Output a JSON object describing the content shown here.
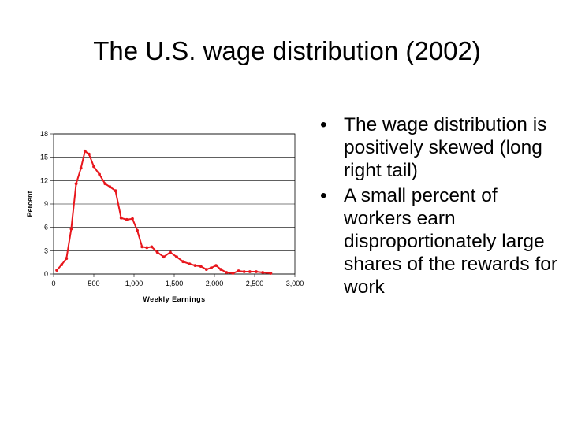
{
  "slide": {
    "title": "The U.S. wage distribution (2002)",
    "bullets": [
      "The wage distribution is positively skewed (long right tail)",
      "A small percent of workers earn disproportionately large shares of the rewards for work"
    ]
  },
  "chart_data": {
    "type": "line",
    "title": "",
    "xlabel": "Weekly Earnings",
    "ylabel": "Percent",
    "xlim": [
      0,
      3000
    ],
    "ylim": [
      0,
      18
    ],
    "xticks": [
      0,
      500,
      1000,
      1500,
      2000,
      2500,
      3000
    ],
    "xtick_labels": [
      "0",
      "500",
      "1,000",
      "1,500",
      "2,000",
      "2,500",
      "3,000"
    ],
    "yticks": [
      0,
      3,
      6,
      9,
      12,
      15,
      18
    ],
    "ytick_labels": [
      "0",
      "3",
      "6",
      "9",
      "12",
      "15",
      "18"
    ],
    "grid": "horizontal",
    "line_color": "#e8161c",
    "series": [
      {
        "x": [
          40,
          100,
          160,
          220,
          280,
          340,
          390,
          440,
          500,
          570,
          640,
          700,
          770,
          840,
          910,
          980,
          1040,
          1100,
          1160,
          1220,
          1290,
          1370,
          1450,
          1530,
          1610,
          1690,
          1760,
          1830,
          1900,
          1960,
          2020,
          2080,
          2150,
          2230,
          2300,
          2370,
          2440,
          2520,
          2600,
          2700
        ],
        "y": [
          0.5,
          1.2,
          2.0,
          5.8,
          11.6,
          13.6,
          15.8,
          15.4,
          13.8,
          12.8,
          11.6,
          11.2,
          10.7,
          7.2,
          7.0,
          7.1,
          5.6,
          3.5,
          3.4,
          3.5,
          2.8,
          2.2,
          2.8,
          2.2,
          1.6,
          1.3,
          1.1,
          1.0,
          0.6,
          0.8,
          1.1,
          0.6,
          0.2,
          0.1,
          0.4,
          0.3,
          0.3,
          0.3,
          0.2,
          0.1
        ]
      }
    ]
  }
}
